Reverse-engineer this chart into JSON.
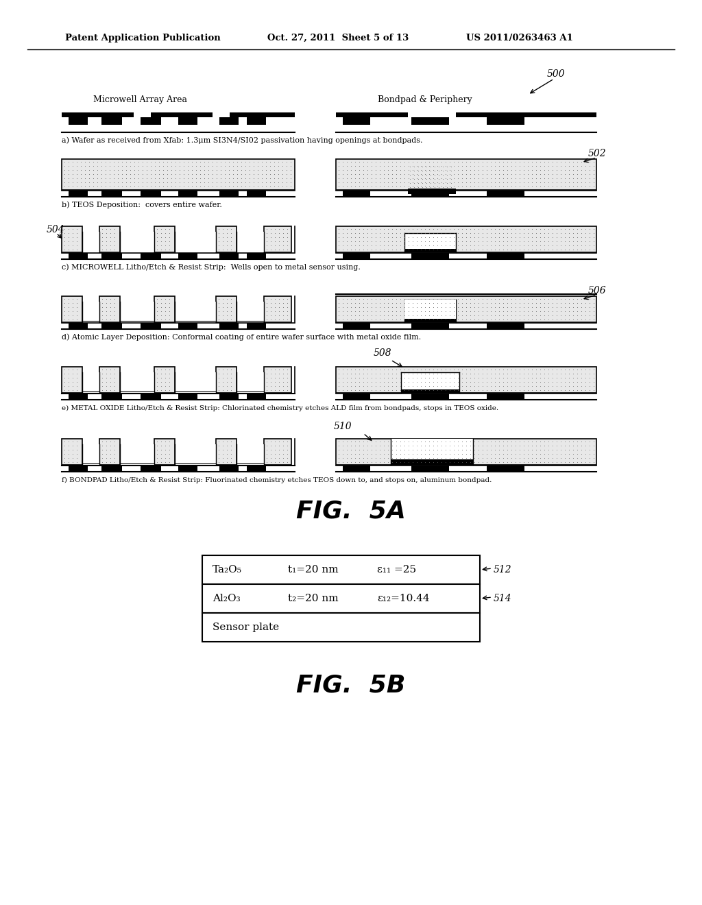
{
  "header_left": "Patent Application Publication",
  "header_center": "Oct. 27, 2011  Sheet 5 of 13",
  "header_right": "US 2011/0263463 A1",
  "fig5a_label": "FIG.  5A",
  "fig5b_label": "FIG.  5B",
  "label_500": "500",
  "label_502": "502",
  "label_504": "504",
  "label_506": "506",
  "label_508": "508",
  "label_510": "510",
  "label_512": "512",
  "label_514": "514",
  "section_label_left": "Microwell Array Area",
  "section_label_right": "Bondpad & Periphery",
  "caption_a": "a) Wafer as received from Xfab: 1.3μm SI3N4/SI02 passivation having openings at bondpads.",
  "caption_b": "b) TEOS Deposition:  covers entire wafer.",
  "caption_c": "c) MICROWELL Litho/Etch & Resist Strip:  Wells open to metal sensor using.",
  "caption_d": "d) Atomic Layer Deposition: Conformal coating of entire wafer surface with metal oxide film.",
  "caption_e": "e) METAL OXIDE Litho/Etch & Resist Strip: Chlorinated chemistry etches ALD film from bondpads, stops in TEOS oxide.",
  "caption_f": "f) BONDPAD Litho/Etch & Resist Strip: Fluorinated chemistry etches TEOS down to, and stops on, aluminum bondpad.",
  "table_row1_col1": "Ta₂O₅",
  "table_row1_col2": "t₁=20 nm",
  "table_row1_col3": "ε₁₁ =25",
  "table_row2_col1": "Al₂O₃",
  "table_row2_col2": "t₂=20 nm",
  "table_row2_col3": "ε₁₂=10.44",
  "table_row3": "Sensor plate",
  "bg_color": "#ffffff"
}
